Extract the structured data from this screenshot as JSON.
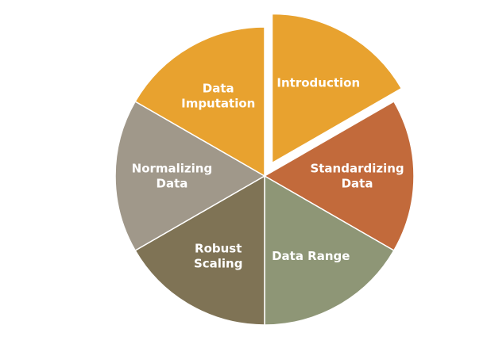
{
  "segments": [
    {
      "id": "introduction",
      "lines": [
        "Introduction"
      ],
      "color": "#E8A22F",
      "exploded": true
    },
    {
      "id": "standardizing-data",
      "lines": [
        "Standardizing",
        "Data"
      ],
      "color": "#C26A3B",
      "exploded": false
    },
    {
      "id": "data-range",
      "lines": [
        "Data Range"
      ],
      "color": "#8E9676",
      "exploded": false
    },
    {
      "id": "robust-scaling",
      "lines": [
        "Robust",
        "Scaling"
      ],
      "color": "#7F7355",
      "exploded": false
    },
    {
      "id": "normalizing-data",
      "lines": [
        "Normalizing",
        "Data"
      ],
      "color": "#A0988A",
      "exploded": false
    },
    {
      "id": "data-imputation",
      "lines": [
        "Data",
        "Imputation"
      ],
      "color": "#E8A22F",
      "exploded": false
    }
  ]
}
